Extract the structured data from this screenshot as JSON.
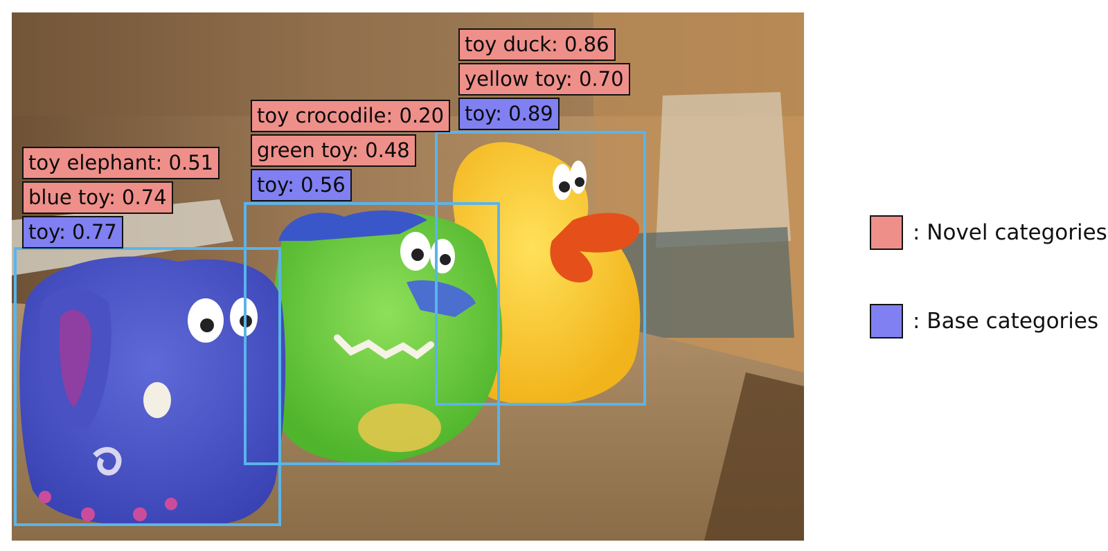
{
  "detections": [
    {
      "object": "elephant",
      "labels": [
        {
          "text": "toy elephant: 0.51",
          "kind": "novel"
        },
        {
          "text": "blue toy: 0.74",
          "kind": "novel"
        },
        {
          "text": "toy: 0.77",
          "kind": "base"
        }
      ]
    },
    {
      "object": "crocodile",
      "labels": [
        {
          "text": "toy crocodile: 0.20",
          "kind": "novel"
        },
        {
          "text": "green toy: 0.48",
          "kind": "novel"
        },
        {
          "text": "toy: 0.56",
          "kind": "base"
        }
      ]
    },
    {
      "object": "duck",
      "labels": [
        {
          "text": "toy duck: 0.86",
          "kind": "novel"
        },
        {
          "text": "yellow toy: 0.70",
          "kind": "novel"
        },
        {
          "text": "toy: 0.89",
          "kind": "base"
        }
      ]
    }
  ],
  "legend": {
    "novel": {
      "text": ": Novel categories",
      "color": "#ef8f8a"
    },
    "base": {
      "text": ": Base categories",
      "color": "#8080f2"
    }
  },
  "colors": {
    "box_outline": "#5ab4ea",
    "novel_fill": "#ef8f8a",
    "base_fill": "#8080f2"
  }
}
